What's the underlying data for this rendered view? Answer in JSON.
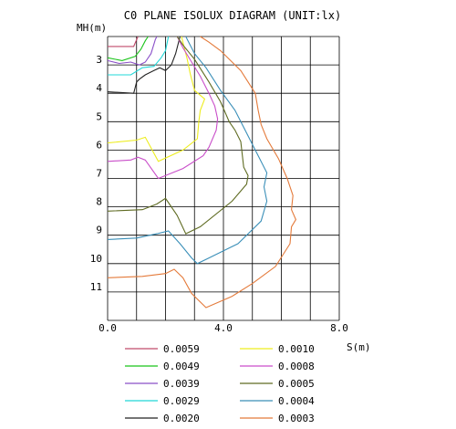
{
  "chart_data": {
    "type": "line",
    "title": "C0 PLANE ISOLUX DIAGRAM (UNIT:lx)",
    "ylabel": "MH(m)",
    "xlabel": "S(m)",
    "xlim": [
      0,
      8
    ],
    "ylim": [
      2,
      12
    ],
    "y_inverted": true,
    "grid": true,
    "x_ticks": [
      "0.0",
      "4.0",
      "8.0"
    ],
    "y_ticks": [
      "3",
      "4",
      "5",
      "6",
      "7",
      "8",
      "9",
      "10",
      "11"
    ],
    "legend_position": "bottom",
    "series": [
      {
        "name": "0.0059",
        "color": "#c04a6b",
        "points": [
          [
            0.0,
            2.35
          ],
          [
            0.9,
            2.35
          ],
          [
            1.05,
            2.0
          ]
        ]
      },
      {
        "name": "0.0049",
        "color": "#19c419",
        "points": [
          [
            0.0,
            2.75
          ],
          [
            0.5,
            2.85
          ],
          [
            0.95,
            2.7
          ],
          [
            1.15,
            2.45
          ],
          [
            1.3,
            2.15
          ],
          [
            1.4,
            2.0
          ]
        ]
      },
      {
        "name": "0.0039",
        "color": "#8a4fc8",
        "points": [
          [
            0.0,
            2.85
          ],
          [
            0.4,
            2.95
          ],
          [
            0.8,
            2.9
          ],
          [
            1.1,
            3.0
          ],
          [
            1.3,
            2.9
          ],
          [
            1.5,
            2.6
          ],
          [
            1.65,
            2.1
          ],
          [
            1.7,
            2.0
          ]
        ]
      },
      {
        "name": "0.0029",
        "color": "#22d8d8",
        "points": [
          [
            0.0,
            3.35
          ],
          [
            0.8,
            3.35
          ],
          [
            1.2,
            3.1
          ],
          [
            1.6,
            3.05
          ],
          [
            1.85,
            2.75
          ],
          [
            2.0,
            2.5
          ],
          [
            2.1,
            2.0
          ]
        ]
      },
      {
        "name": "0.0020",
        "color": "#222222",
        "points": [
          [
            0.0,
            3.95
          ],
          [
            0.9,
            4.0
          ],
          [
            1.0,
            3.6
          ],
          [
            1.1,
            3.5
          ],
          [
            1.3,
            3.35
          ],
          [
            1.6,
            3.2
          ],
          [
            1.8,
            3.1
          ],
          [
            2.0,
            3.2
          ],
          [
            2.2,
            3.0
          ],
          [
            2.35,
            2.6
          ],
          [
            2.45,
            2.2
          ],
          [
            2.5,
            2.0
          ]
        ]
      },
      {
        "name": "0.0010",
        "color": "#eded1e",
        "points": [
          [
            0.0,
            5.75
          ],
          [
            1.0,
            5.65
          ],
          [
            1.3,
            5.55
          ],
          [
            1.75,
            6.4
          ],
          [
            2.6,
            6.0
          ],
          [
            3.1,
            5.6
          ],
          [
            3.15,
            5.0
          ],
          [
            3.2,
            4.6
          ],
          [
            3.35,
            4.2
          ],
          [
            3.0,
            3.9
          ],
          [
            2.85,
            3.3
          ],
          [
            2.75,
            2.8
          ],
          [
            2.65,
            2.4
          ],
          [
            2.55,
            2.0
          ]
        ]
      },
      {
        "name": "0.0008",
        "color": "#c94ec9",
        "points": [
          [
            0.0,
            6.4
          ],
          [
            0.8,
            6.35
          ],
          [
            1.05,
            6.25
          ],
          [
            1.3,
            6.35
          ],
          [
            1.75,
            7.0
          ],
          [
            2.6,
            6.65
          ],
          [
            3.3,
            6.2
          ],
          [
            3.5,
            5.9
          ],
          [
            3.75,
            5.3
          ],
          [
            3.8,
            4.9
          ],
          [
            3.7,
            4.45
          ],
          [
            3.5,
            4.0
          ],
          [
            3.2,
            3.4
          ],
          [
            2.9,
            2.9
          ],
          [
            2.6,
            2.4
          ],
          [
            2.4,
            2.0
          ]
        ]
      },
      {
        "name": "0.0005",
        "color": "#5f6b22",
        "points": [
          [
            0.0,
            8.15
          ],
          [
            1.2,
            8.1
          ],
          [
            1.7,
            7.9
          ],
          [
            2.0,
            7.7
          ],
          [
            2.4,
            8.3
          ],
          [
            2.7,
            8.95
          ],
          [
            3.2,
            8.7
          ],
          [
            4.3,
            7.8
          ],
          [
            4.8,
            7.2
          ],
          [
            4.85,
            6.9
          ],
          [
            4.7,
            6.6
          ],
          [
            4.6,
            5.7
          ],
          [
            4.4,
            5.3
          ],
          [
            4.2,
            5.0
          ],
          [
            3.9,
            4.3
          ],
          [
            3.5,
            3.6
          ],
          [
            3.0,
            2.8
          ],
          [
            2.6,
            2.3
          ],
          [
            2.4,
            2.0
          ]
        ]
      },
      {
        "name": "0.0004",
        "color": "#3a8fb8",
        "points": [
          [
            0.0,
            9.15
          ],
          [
            1.0,
            9.1
          ],
          [
            1.7,
            8.95
          ],
          [
            2.1,
            8.85
          ],
          [
            2.5,
            9.3
          ],
          [
            2.9,
            9.8
          ],
          [
            3.1,
            10.0
          ],
          [
            3.5,
            9.8
          ],
          [
            4.5,
            9.3
          ],
          [
            5.3,
            8.5
          ],
          [
            5.5,
            7.8
          ],
          [
            5.4,
            7.3
          ],
          [
            5.5,
            6.8
          ],
          [
            5.15,
            6.1
          ],
          [
            4.8,
            5.4
          ],
          [
            4.4,
            4.6
          ],
          [
            3.9,
            3.9
          ],
          [
            3.4,
            3.1
          ],
          [
            3.0,
            2.6
          ],
          [
            2.7,
            2.0
          ]
        ]
      },
      {
        "name": "0.0003",
        "color": "#e47a3a",
        "points": [
          [
            0.0,
            10.5
          ],
          [
            1.2,
            10.45
          ],
          [
            2.0,
            10.35
          ],
          [
            2.3,
            10.2
          ],
          [
            2.6,
            10.5
          ],
          [
            2.9,
            11.05
          ],
          [
            3.4,
            11.55
          ],
          [
            4.3,
            11.15
          ],
          [
            5.0,
            10.7
          ],
          [
            5.8,
            10.1
          ],
          [
            6.3,
            9.3
          ],
          [
            6.35,
            8.7
          ],
          [
            6.5,
            8.45
          ],
          [
            6.35,
            8.1
          ],
          [
            6.4,
            7.6
          ],
          [
            6.2,
            7.0
          ],
          [
            5.9,
            6.3
          ],
          [
            5.5,
            5.6
          ],
          [
            5.3,
            5.1
          ],
          [
            5.2,
            4.6
          ],
          [
            5.1,
            4.0
          ],
          [
            4.85,
            3.6
          ],
          [
            4.6,
            3.2
          ],
          [
            4.3,
            2.9
          ],
          [
            3.9,
            2.5
          ],
          [
            3.5,
            2.2
          ],
          [
            3.2,
            2.0
          ]
        ]
      }
    ]
  }
}
